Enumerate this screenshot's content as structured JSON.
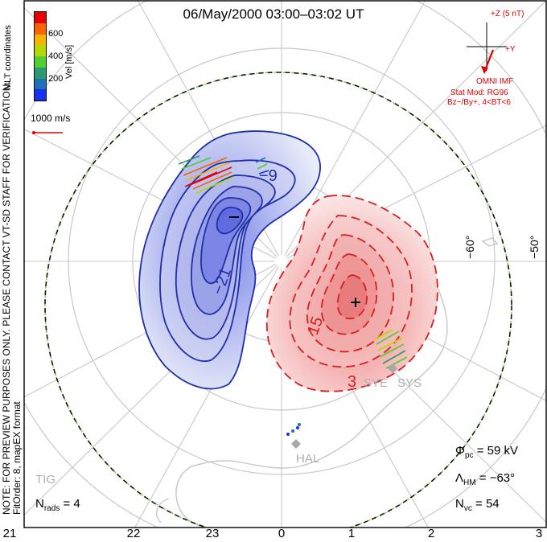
{
  "title": "06/May/2000 03:00–03:02 UT",
  "side_note": {
    "line1": "NOTE: FOR PREVIEW PURPOSES ONLY. PLEASE CONTACT VT-SD STAFF FOR VERIFICATION.",
    "line2": "FitOrder: 8, mapEX format"
  },
  "velocity_scale": {
    "title": "MLT coordinates",
    "unit_label": "Vel [m/s]",
    "ticks": [
      "600",
      "400",
      "200"
    ],
    "colors": [
      "#e80000",
      "#f86400",
      "#f8b400",
      "#b4d800",
      "#50d030",
      "#2a9a70",
      "#2070b8",
      "#1430f0"
    ],
    "reference_label": "1000 m/s",
    "reference_color": "#e00000"
  },
  "imf": {
    "z_label": "+Z (5 nT)",
    "y_label": "+Y",
    "source": "OMNI IMF",
    "model": "Stat Mod: RG96",
    "condition": "Bz−/By+, 4<BT<6",
    "color": "#e00000"
  },
  "contours": {
    "negative_labels": [
      "−9",
      "−21"
    ],
    "positive_labels": [
      "15",
      "3"
    ],
    "min_marker": "−",
    "max_marker": "+",
    "negative_color": "#1f2fa8",
    "positive_color": "#d42020"
  },
  "lat_labels": [
    "−60°",
    "−50°"
  ],
  "stations": [
    "SYE",
    "SYS",
    "HAL",
    "TIG"
  ],
  "mlt_ticks": [
    "21",
    "22",
    "23",
    "0",
    "1",
    "2",
    "3"
  ],
  "stats": {
    "nrads_sym": "N",
    "nrads_sub": "rads",
    "nrads_val": "= 4",
    "phi_sym": "Φ",
    "phi_sub": "pc",
    "phi_val": "= 59 kV",
    "lam_sym": "Λ",
    "lam_sub": "HM",
    "lam_val": "= −63°",
    "nvc_sym": "N",
    "nvc_sub": "vc",
    "nvc_val": "= 54"
  }
}
